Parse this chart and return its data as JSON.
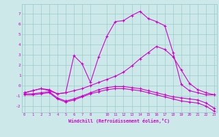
{
  "xlabel": "Windchill (Refroidissement éolien,°C)",
  "background_color": "#cce8e8",
  "grid_color": "#99cccc",
  "line_color": "#cc00cc",
  "hours": [
    0,
    1,
    2,
    3,
    4,
    5,
    6,
    7,
    8,
    9,
    10,
    11,
    12,
    13,
    14,
    15,
    16,
    17,
    18,
    19,
    20,
    21,
    22,
    23
  ],
  "series_main": [
    -0.7,
    -0.5,
    -0.3,
    -0.5,
    -0.8,
    -0.7,
    2.9,
    2.1,
    0.3,
    2.8,
    4.8,
    6.2,
    6.3,
    6.8,
    7.2,
    6.5,
    6.2,
    5.8,
    3.2,
    0.1,
    -0.5,
    -0.7,
    -0.9,
    -0.9
  ],
  "series_temp": [
    -0.7,
    -0.5,
    -0.3,
    -0.4,
    -0.8,
    -0.7,
    -0.5,
    -0.3,
    0.0,
    0.3,
    0.6,
    0.9,
    1.3,
    1.9,
    2.6,
    3.2,
    3.8,
    3.5,
    2.8,
    1.5,
    0.2,
    -0.4,
    -0.7,
    -0.9
  ],
  "series_wc1": [
    -0.8,
    -0.8,
    -0.7,
    -0.6,
    -1.2,
    -1.5,
    -1.3,
    -1.0,
    -0.7,
    -0.4,
    -0.2,
    -0.1,
    -0.1,
    -0.2,
    -0.3,
    -0.5,
    -0.7,
    -0.9,
    -1.1,
    -1.2,
    -1.3,
    -1.4,
    -1.7,
    -2.2
  ],
  "series_wc2": [
    -0.9,
    -0.9,
    -0.8,
    -0.7,
    -1.3,
    -1.6,
    -1.4,
    -1.1,
    -0.8,
    -0.6,
    -0.4,
    -0.3,
    -0.3,
    -0.4,
    -0.5,
    -0.7,
    -0.9,
    -1.1,
    -1.3,
    -1.5,
    -1.6,
    -1.7,
    -2.0,
    -2.5
  ],
  "xlim": [
    -0.3,
    23.3
  ],
  "ylim": [
    -2.6,
    7.9
  ],
  "yticks": [
    -2,
    -1,
    0,
    1,
    2,
    3,
    4,
    5,
    6,
    7
  ],
  "xticks": [
    0,
    1,
    2,
    3,
    4,
    5,
    6,
    7,
    8,
    10,
    11,
    12,
    13,
    14,
    15,
    16,
    17,
    18,
    19,
    20,
    21,
    22,
    23
  ]
}
